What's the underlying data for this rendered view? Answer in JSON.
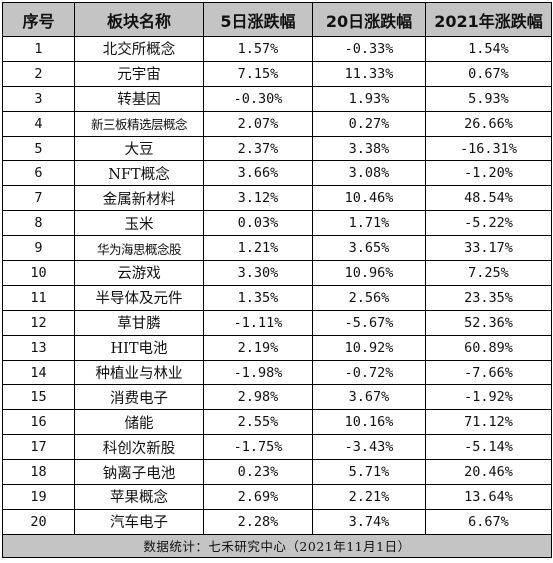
{
  "table": {
    "headers": [
      "序号",
      "板块名称",
      "5日涨跌幅",
      "20日涨跌幅",
      "2021年涨跌幅"
    ],
    "rows": [
      [
        "1",
        "北交所概念",
        "1.57%",
        "-0.33%",
        "1.54%"
      ],
      [
        "2",
        "元宇宙",
        "7.15%",
        "11.33%",
        "0.67%"
      ],
      [
        "3",
        "转基因",
        "-0.30%",
        "1.93%",
        "5.93%"
      ],
      [
        "4",
        "新三板精选层概念",
        "2.07%",
        "0.27%",
        "26.66%"
      ],
      [
        "5",
        "大豆",
        "2.37%",
        "3.38%",
        "-16.31%"
      ],
      [
        "6",
        "NFT概念",
        "3.66%",
        "3.08%",
        "-1.20%"
      ],
      [
        "7",
        "金属新材料",
        "3.12%",
        "10.46%",
        "48.54%"
      ],
      [
        "8",
        "玉米",
        "0.03%",
        "1.71%",
        "-5.22%"
      ],
      [
        "9",
        "华为海思概念股",
        "1.21%",
        "3.65%",
        "33.17%"
      ],
      [
        "10",
        "云游戏",
        "3.30%",
        "10.96%",
        "7.25%"
      ],
      [
        "11",
        "半导体及元件",
        "1.35%",
        "2.56%",
        "23.35%"
      ],
      [
        "12",
        "草甘膦",
        "-1.11%",
        "-5.67%",
        "52.36%"
      ],
      [
        "13",
        "HIT电池",
        "2.19%",
        "10.92%",
        "60.89%"
      ],
      [
        "14",
        "种植业与林业",
        "-1.98%",
        "-0.72%",
        "-7.66%"
      ],
      [
        "15",
        "消费电子",
        "2.98%",
        "3.67%",
        "-1.92%"
      ],
      [
        "16",
        "储能",
        "2.55%",
        "10.16%",
        "71.12%"
      ],
      [
        "17",
        "科创次新股",
        "-1.75%",
        "-3.43%",
        "-5.14%"
      ],
      [
        "18",
        "钠离子电池",
        "0.23%",
        "5.71%",
        "20.46%"
      ],
      [
        "19",
        "苹果概念",
        "2.69%",
        "2.21%",
        "13.64%"
      ],
      [
        "20",
        "汽车电子",
        "2.28%",
        "3.74%",
        "6.67%"
      ]
    ],
    "footer": "数据统计：七禾研究中心（2021年11月1日）"
  },
  "colors": {
    "header_bg": "#c4c4c4",
    "footer_bg": "#c4c4c4",
    "grid": "#000000"
  }
}
